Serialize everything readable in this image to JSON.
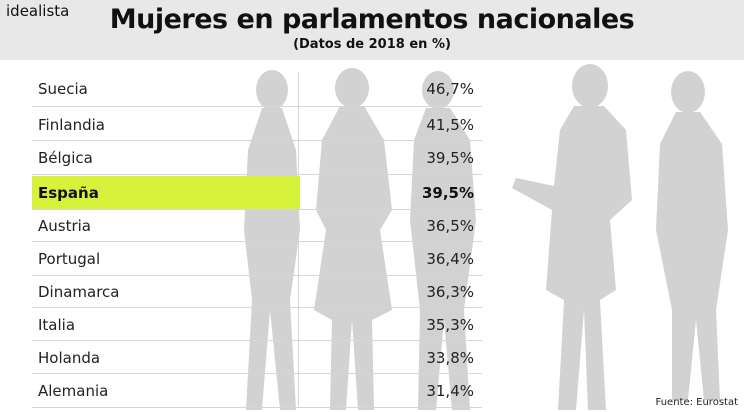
{
  "brand": "idealista",
  "title": "Mujeres en parlamentos nacionales",
  "subtitle": "(Datos de 2018 en %)",
  "source": "Fuente: Eurostat",
  "colors": {
    "highlight": "#d7f23a",
    "silhouette": "#cfcfcf",
    "header_bg": "#e8e8e8"
  },
  "chart_data": {
    "type": "table",
    "highlighted": "España",
    "rows": [
      {
        "country": "Suecia",
        "value": 46.7,
        "label": "46,7%"
      },
      {
        "country": "Finlandia",
        "value": 41.5,
        "label": "41,5%"
      },
      {
        "country": "Bélgica",
        "value": 39.5,
        "label": "39,5%"
      },
      {
        "country": "España",
        "value": 39.5,
        "label": "39,5%"
      },
      {
        "country": "Austria",
        "value": 36.5,
        "label": "36,5%"
      },
      {
        "country": "Portugal",
        "value": 36.4,
        "label": "36,4%"
      },
      {
        "country": "Dinamarca",
        "value": 36.3,
        "label": "36,3%"
      },
      {
        "country": "Italia",
        "value": 35.3,
        "label": "35,3%"
      },
      {
        "country": "Holanda",
        "value": 33.8,
        "label": "33,8%"
      },
      {
        "country": "Alemania",
        "value": 31.4,
        "label": "31,4%"
      }
    ]
  }
}
